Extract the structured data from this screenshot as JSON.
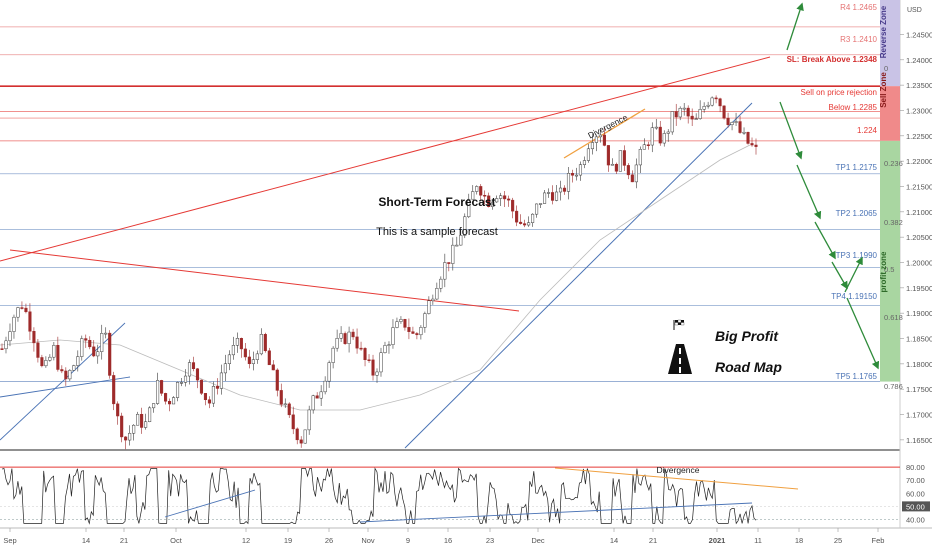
{
  "chart_data": [
    {
      "type": "line",
      "subtype": "candlestick",
      "title": "",
      "xlabel": "",
      "ylabel": "",
      "ylim": [
        1.163,
        1.2518
      ],
      "x_ticks": [
        "Sep",
        "14",
        "21",
        "Oct",
        "12",
        "19",
        "26",
        "Nov",
        "9",
        "16",
        "23",
        "Dec",
        "14",
        "21",
        "2021",
        "11",
        "18",
        "25",
        "Feb"
      ],
      "y_ticks": [
        "1.16500",
        "1.17000",
        "1.17500",
        "1.18000",
        "1.18500",
        "1.19000",
        "1.19500",
        "1.20000",
        "1.20500",
        "1.21000",
        "1.21500",
        "1.22000",
        "1.22500",
        "1.23000",
        "1.23500",
        "1.24000",
        "1.24500"
      ],
      "currency_label": "USD",
      "price_path": [
        1.183,
        1.189,
        1.192,
        1.186,
        1.178,
        1.183,
        1.176,
        1.18,
        1.185,
        1.182,
        1.186,
        1.17,
        1.165,
        1.169,
        1.168,
        1.176,
        1.172,
        1.176,
        1.18,
        1.177,
        1.172,
        1.177,
        1.182,
        1.184,
        1.179,
        1.185,
        1.179,
        1.173,
        1.168,
        1.165,
        1.172,
        1.176,
        1.183,
        1.185,
        1.186,
        1.181,
        1.178,
        1.183,
        1.187,
        1.188,
        1.185,
        1.19,
        1.196,
        1.2,
        1.203,
        1.21,
        1.216,
        1.212,
        1.214,
        1.212,
        1.208,
        1.207,
        1.212,
        1.214,
        1.213,
        1.217,
        1.219,
        1.225,
        1.226,
        1.218,
        1.221,
        1.217,
        1.222,
        1.226,
        1.224,
        1.229,
        1.23,
        1.227,
        1.231,
        1.234,
        1.229,
        1.227,
        1.224,
        1.222
      ],
      "levels": [
        {
          "label": "R4 1.2465",
          "value": 1.2465,
          "color": "#e57373"
        },
        {
          "label": "R3 1.2410",
          "value": 1.241,
          "color": "#e57373"
        },
        {
          "label": "SL: Break Above 1.2348",
          "value": 1.2348,
          "color": "#d32f2f"
        },
        {
          "label": "Sell  on price rejection",
          "value": 1.2298,
          "color": "#e53935"
        },
        {
          "label": "Below 1.2285",
          "value": 1.2285,
          "color": "#e53935"
        },
        {
          "label": "1.224",
          "value": 1.224,
          "color": "#e53935"
        },
        {
          "label": "TP1 1.2175",
          "value": 1.2175,
          "color": "#4a73b5"
        },
        {
          "label": "TP2 1.2065",
          "value": 1.2065,
          "color": "#4a73b5"
        },
        {
          "label": "TP3 1.1990",
          "value": 1.199,
          "color": "#4a73b5"
        },
        {
          "label": "TP4 1.19150",
          "value": 1.1915,
          "color": "#4a73b5"
        },
        {
          "label": "TP5 1.1765",
          "value": 1.1765,
          "color": "#4a73b5"
        }
      ],
      "fib_levels": [
        {
          "label": "0",
          "value": 1.2345
        },
        {
          "label": "0.236",
          "value": 1.2174
        },
        {
          "label": "0.382",
          "value": 1.2067
        },
        {
          "label": "0.5",
          "value": 1.1982
        },
        {
          "label": "0.618",
          "value": 1.1897
        },
        {
          "label": "0.786",
          "value": 1.1755
        }
      ],
      "zones": [
        {
          "label": "Reverse Zone",
          "from": 1.2348,
          "to": 1.2518,
          "color": "#c9c3e6"
        },
        {
          "label": "Sell Zone",
          "from": 1.224,
          "to": 1.2348,
          "color": "#f08a8a"
        },
        {
          "label": "profit zone",
          "from": 1.1765,
          "to": 1.224,
          "color": "#a9d6a1"
        }
      ],
      "annotations": {
        "forecast_title": "Short-Term Forecast",
        "forecast_subtitle": "This is a sample forecast",
        "divergence": "Divergence",
        "brand_line1": "Big Profit",
        "brand_line2": "Road Map"
      },
      "colors": {
        "up": "#3a3a3a",
        "down": "#9e2a2a",
        "resistance": "#e53935",
        "support": "#4a73b5",
        "forecast": "#2e8b3a",
        "divergence": "#f0a040"
      }
    },
    {
      "type": "line",
      "title": "",
      "ylim": [
        35,
        87
      ],
      "y_ticks": [
        "40.00",
        "50.00",
        "60.00",
        "70.00",
        "80.00"
      ],
      "current_value": "50.00",
      "annotations": {
        "divergence": "Divergence"
      },
      "upper_band": 80,
      "lower_band": 40
    }
  ]
}
